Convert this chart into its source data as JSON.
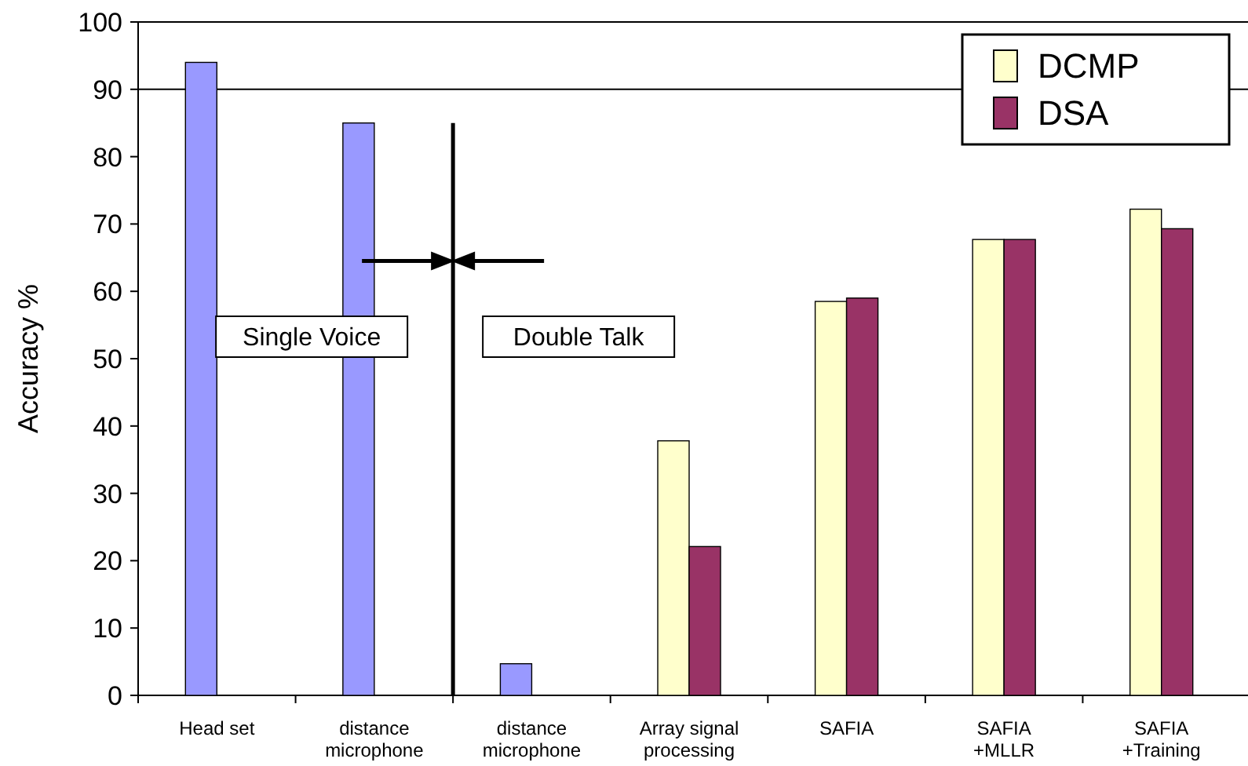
{
  "chart_data": {
    "type": "bar",
    "ylabel": "Accuracy %",
    "categories": [
      "Head set",
      "distance\nmicrophone",
      "distance\nmicrophone",
      "Array signal\nprocessing",
      "SAFIA",
      "SAFIA\n+MLLR",
      "SAFIA\n+Training"
    ],
    "series": [
      {
        "name": "DCMP",
        "color": "#ffffcc",
        "colors": [
          "#9999ff",
          "#9999ff",
          "#9999ff",
          "#ffffcc",
          "#ffffcc",
          "#ffffcc",
          "#ffffcc"
        ],
        "values": [
          94,
          85,
          4.7,
          37.8,
          58.5,
          67.7,
          72.2
        ]
      },
      {
        "name": "DSA",
        "color": "#993366",
        "values": [
          null,
          null,
          null,
          22.1,
          59,
          67.7,
          69.3
        ]
      }
    ],
    "ylim": [
      0,
      100
    ],
    "yticks": [
      0,
      10,
      20,
      30,
      40,
      50,
      60,
      70,
      80,
      90,
      100
    ],
    "ref_lines": [
      {
        "axis": "y",
        "value": 90
      }
    ],
    "annotations": [
      "Single Voice",
      "Double Talk"
    ],
    "legend": "top right",
    "grid": false
  }
}
